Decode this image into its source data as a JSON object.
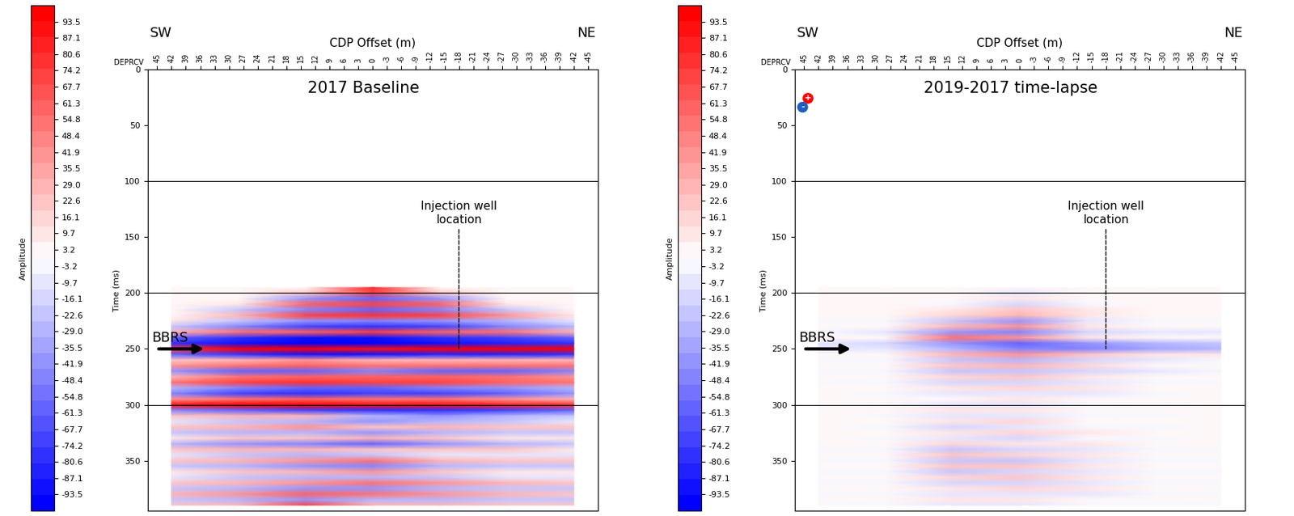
{
  "chart_data": [
    {
      "type": "heatmap",
      "title": "2017 Baseline",
      "x_label": "CDP Offset (m)",
      "y_label": "Time (ms)",
      "corner_labels": [
        "SW",
        "NE"
      ],
      "axis_tag": "DEPRCV",
      "xlim": [
        47,
        -47
      ],
      "xticks": [
        45,
        42,
        39,
        36,
        33,
        30,
        27,
        24,
        21,
        18,
        15,
        12,
        9,
        6,
        3,
        0,
        -3,
        -6,
        -9,
        -12,
        -15,
        -18,
        -21,
        -24,
        -27,
        -30,
        -33,
        -36,
        -39,
        -42,
        -45
      ],
      "ylim": [
        395,
        0
      ],
      "yticks": [
        0,
        50,
        100,
        150,
        200,
        250,
        300,
        350
      ],
      "grid": true,
      "well": {
        "label": "Injection well\nlocation",
        "x": -18
      },
      "horizon": {
        "label": "BBRS",
        "time": 250
      },
      "x": [
        42,
        28,
        14,
        0,
        -14,
        -28,
        -42
      ],
      "y": [
        195,
        200,
        205,
        210,
        215,
        220,
        225,
        230,
        235,
        240,
        245,
        250,
        255,
        260,
        265,
        270,
        275,
        280,
        285,
        290,
        295,
        300,
        305,
        310,
        315,
        320,
        325,
        330,
        335,
        340,
        345,
        350,
        355,
        360,
        365,
        370,
        375,
        380,
        385,
        390
      ],
      "cells": [
        [
          0,
          0,
          0,
          80,
          0,
          0,
          0
        ],
        [
          0,
          0,
          20,
          70,
          20,
          0,
          0
        ],
        [
          0,
          0,
          -40,
          -60,
          -40,
          0,
          0
        ],
        [
          0,
          10,
          60,
          70,
          60,
          10,
          0
        ],
        [
          0,
          -20,
          -50,
          -60,
          -50,
          -20,
          0
        ],
        [
          0,
          30,
          70,
          80,
          70,
          40,
          10
        ],
        [
          10,
          -20,
          -40,
          -50,
          -40,
          -30,
          -10
        ],
        [
          -20,
          -50,
          -70,
          -80,
          -70,
          -50,
          -30
        ],
        [
          30,
          50,
          60,
          70,
          60,
          50,
          30
        ],
        [
          -60,
          -80,
          -90,
          -90,
          -80,
          -70,
          -60
        ],
        [
          -80,
          -90,
          -95,
          -95,
          -90,
          -85,
          -80
        ],
        [
          80,
          95,
          95,
          90,
          95,
          95,
          95
        ],
        [
          -60,
          -80,
          -90,
          -90,
          -85,
          -85,
          -80
        ],
        [
          20,
          30,
          40,
          30,
          30,
          30,
          30
        ],
        [
          40,
          50,
          60,
          50,
          50,
          50,
          50
        ],
        [
          -40,
          -60,
          -60,
          -50,
          -60,
          -60,
          -50
        ],
        [
          30,
          50,
          60,
          60,
          60,
          50,
          40
        ],
        [
          50,
          70,
          80,
          70,
          70,
          60,
          50
        ],
        [
          -30,
          -50,
          -60,
          -60,
          -50,
          -40,
          -30
        ],
        [
          -50,
          -70,
          -80,
          -70,
          -70,
          -60,
          -40
        ],
        [
          40,
          50,
          60,
          50,
          50,
          40,
          30
        ],
        [
          90,
          95,
          95,
          90,
          90,
          85,
          80
        ],
        [
          -50,
          -60,
          -70,
          -80,
          -80,
          -70,
          -60
        ],
        [
          20,
          30,
          30,
          -30,
          -40,
          -30,
          -20
        ],
        [
          -10,
          -20,
          -30,
          -40,
          -30,
          -20,
          -10
        ],
        [
          20,
          30,
          40,
          20,
          30,
          20,
          20
        ],
        [
          -20,
          -30,
          -30,
          -40,
          -30,
          -20,
          -20
        ],
        [
          10,
          20,
          20,
          30,
          20,
          10,
          10
        ],
        [
          -30,
          -40,
          -50,
          -60,
          -40,
          -30,
          -20
        ],
        [
          20,
          30,
          30,
          20,
          20,
          20,
          10
        ],
        [
          -10,
          -20,
          -30,
          -20,
          -10,
          -10,
          -10
        ],
        [
          20,
          30,
          40,
          50,
          30,
          20,
          20
        ],
        [
          -20,
          -30,
          -40,
          -50,
          -30,
          -20,
          -20
        ],
        [
          10,
          20,
          30,
          40,
          20,
          10,
          10
        ],
        [
          -10,
          -20,
          -30,
          -30,
          -20,
          -10,
          -10
        ],
        [
          20,
          30,
          40,
          50,
          40,
          30,
          20
        ],
        [
          -20,
          -30,
          -40,
          -40,
          -30,
          -20,
          -20
        ],
        [
          30,
          40,
          60,
          50,
          40,
          30,
          20
        ],
        [
          -20,
          -30,
          -40,
          -30,
          -30,
          -20,
          -20
        ],
        [
          20,
          30,
          70,
          30,
          30,
          20,
          20
        ]
      ],
      "colorbar": {
        "label": "Amplitude",
        "range": [
          -100,
          100
        ],
        "ticks": [
          93.5,
          87.1,
          80.6,
          74.2,
          67.7,
          61.3,
          54.8,
          48.4,
          41.9,
          35.5,
          29.0,
          22.6,
          16.1,
          9.7,
          3.2,
          -3.2,
          -9.7,
          -16.1,
          -22.6,
          -29.0,
          -35.5,
          -41.9,
          -48.4,
          -54.8,
          -61.3,
          -67.7,
          -74.2,
          -80.6,
          -87.1,
          -93.5
        ]
      }
    },
    {
      "type": "heatmap",
      "title": "2019-2017 time-lapse",
      "x_label": "CDP Offset (m)",
      "y_label": "Time (ms)",
      "corner_labels": [
        "SW",
        "NE"
      ],
      "axis_tag": "DEPRCV",
      "polarity_icon": [
        "+",
        "-"
      ],
      "xlim": [
        47,
        -47
      ],
      "xticks": [
        45,
        42,
        39,
        36,
        33,
        30,
        27,
        24,
        21,
        18,
        15,
        12,
        9,
        6,
        3,
        0,
        -3,
        -6,
        -9,
        -12,
        -15,
        -18,
        -21,
        -24,
        -27,
        -30,
        -33,
        -36,
        -39,
        -42,
        -45
      ],
      "ylim": [
        395,
        0
      ],
      "yticks": [
        0,
        50,
        100,
        150,
        200,
        250,
        300,
        350
      ],
      "grid": true,
      "well": {
        "label": "Injection well\nlocation",
        "x": -18
      },
      "horizon": {
        "label": "BBRS",
        "time": 250
      },
      "x": [
        42,
        28,
        14,
        0,
        -14,
        -28,
        -42
      ],
      "y": [
        195,
        200,
        205,
        210,
        215,
        220,
        225,
        230,
        235,
        240,
        245,
        250,
        255,
        260,
        265,
        270,
        275,
        280,
        285,
        290,
        295,
        300,
        305,
        310,
        315,
        320,
        325,
        330,
        335,
        340,
        345,
        350,
        355,
        360,
        365,
        370,
        375,
        380,
        385,
        390
      ],
      "cells": [
        [
          0,
          0,
          0,
          0,
          0,
          0,
          0
        ],
        [
          0,
          0,
          0,
          -10,
          0,
          0,
          0
        ],
        [
          0,
          0,
          5,
          10,
          5,
          0,
          0
        ],
        [
          0,
          0,
          -5,
          -15,
          -5,
          0,
          0
        ],
        [
          0,
          0,
          10,
          20,
          10,
          0,
          0
        ],
        [
          0,
          5,
          15,
          30,
          10,
          5,
          0
        ],
        [
          -5,
          -5,
          -20,
          -40,
          -10,
          -5,
          -5
        ],
        [
          5,
          5,
          30,
          40,
          10,
          5,
          5
        ],
        [
          -5,
          -10,
          -40,
          -50,
          -15,
          -10,
          -10
        ],
        [
          5,
          5,
          50,
          40,
          10,
          5,
          5
        ],
        [
          -10,
          -15,
          -40,
          -60,
          -40,
          -30,
          -25
        ],
        [
          -10,
          -10,
          -30,
          -50,
          -45,
          -35,
          -30
        ],
        [
          5,
          5,
          30,
          40,
          20,
          10,
          10
        ],
        [
          -5,
          -5,
          -20,
          -30,
          -15,
          -10,
          -5
        ],
        [
          5,
          5,
          20,
          30,
          15,
          5,
          5
        ],
        [
          -5,
          -5,
          -25,
          -20,
          -15,
          -10,
          -5
        ],
        [
          5,
          5,
          15,
          20,
          10,
          5,
          5
        ],
        [
          -5,
          -5,
          -15,
          -15,
          -10,
          -5,
          -5
        ],
        [
          0,
          5,
          10,
          15,
          10,
          5,
          0
        ],
        [
          0,
          -5,
          -10,
          -10,
          -10,
          -5,
          0
        ],
        [
          0,
          5,
          5,
          10,
          5,
          5,
          0
        ],
        [
          0,
          -5,
          -10,
          -10,
          -5,
          -5,
          0
        ],
        [
          0,
          5,
          10,
          10,
          5,
          5,
          0
        ],
        [
          0,
          -5,
          -10,
          -10,
          -5,
          -5,
          0
        ],
        [
          0,
          5,
          10,
          15,
          5,
          5,
          0
        ],
        [
          0,
          -5,
          -15,
          -10,
          -5,
          -5,
          0
        ],
        [
          0,
          5,
          10,
          15,
          10,
          5,
          0
        ],
        [
          0,
          -5,
          -10,
          -15,
          -5,
          -5,
          0
        ],
        [
          5,
          5,
          15,
          10,
          10,
          5,
          5
        ],
        [
          -5,
          -5,
          -20,
          -15,
          -10,
          -5,
          -5
        ],
        [
          5,
          5,
          20,
          15,
          10,
          5,
          5
        ],
        [
          -5,
          -5,
          -25,
          -20,
          -10,
          -5,
          -5
        ],
        [
          5,
          5,
          20,
          20,
          10,
          5,
          5
        ],
        [
          -5,
          -5,
          -20,
          -15,
          -10,
          -5,
          -5
        ],
        [
          5,
          5,
          15,
          20,
          10,
          5,
          5
        ],
        [
          -5,
          -5,
          -15,
          -15,
          -10,
          -5,
          -5
        ],
        [
          5,
          5,
          10,
          15,
          10,
          5,
          5
        ],
        [
          -5,
          -5,
          -10,
          -10,
          -10,
          -5,
          -5
        ],
        [
          5,
          5,
          10,
          10,
          5,
          5,
          5
        ],
        [
          -5,
          -5,
          -10,
          -10,
          -5,
          -5,
          -5
        ]
      ],
      "colorbar": {
        "label": "Amplitude",
        "range": [
          -100,
          100
        ],
        "ticks": [
          93.5,
          87.1,
          80.6,
          74.2,
          67.7,
          61.3,
          54.8,
          48.4,
          41.9,
          35.5,
          29.0,
          22.6,
          16.1,
          9.7,
          3.2,
          -3.2,
          -9.7,
          -16.1,
          -22.6,
          -29.0,
          -35.5,
          -41.9,
          -48.4,
          -54.8,
          -61.3,
          -67.7,
          -74.2,
          -80.6,
          -87.1,
          -93.5
        ]
      }
    }
  ]
}
